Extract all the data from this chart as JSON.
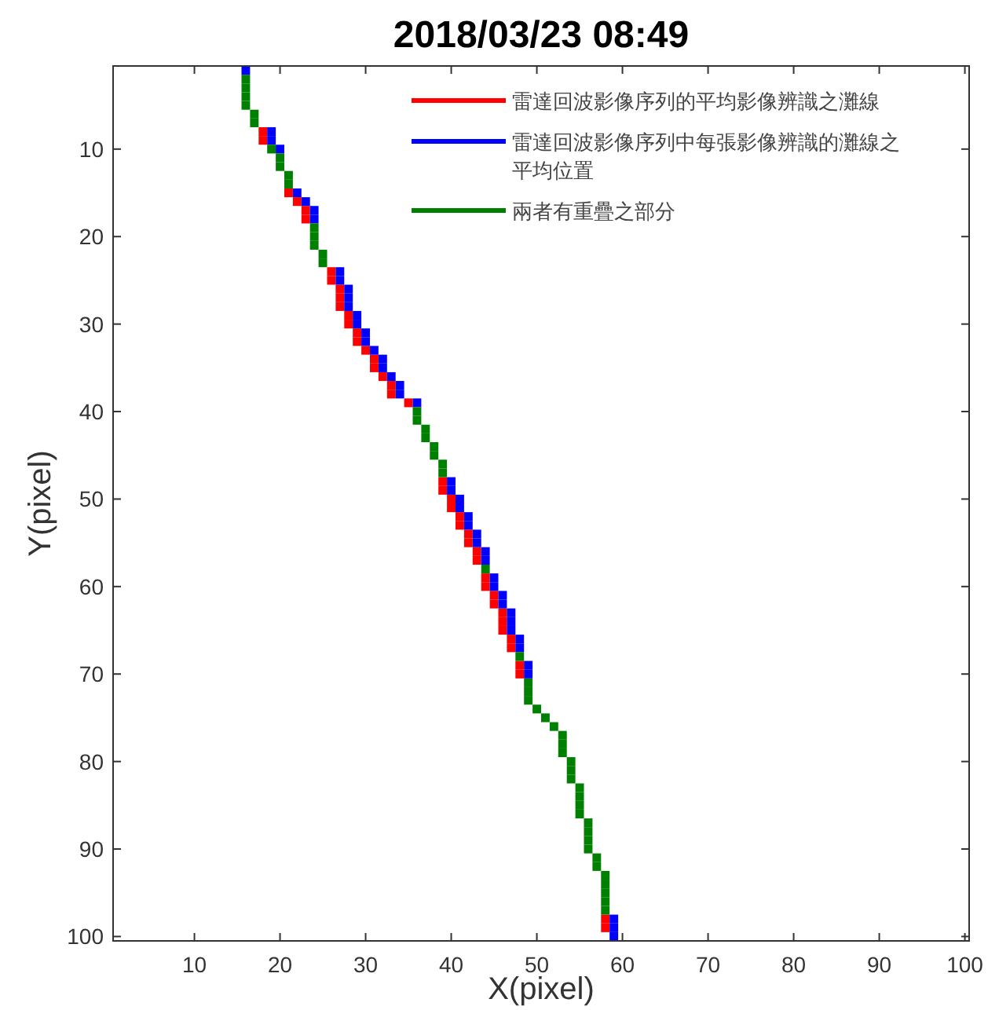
{
  "chart_data": {
    "type": "scatter",
    "title": "2018/03/23 08:49",
    "xlabel": "X(pixel)",
    "ylabel": "Y(pixel)",
    "marker": "square",
    "legend": "top right",
    "grid": false,
    "xlim": [
      0.5,
      100.5
    ],
    "ylim": [
      100.5,
      0.5
    ],
    "xticks": [
      10,
      20,
      30,
      40,
      50,
      60,
      70,
      80,
      90,
      100
    ],
    "yticks": [
      10,
      20,
      30,
      40,
      50,
      60,
      70,
      80,
      90,
      100
    ],
    "series": [
      {
        "name": "雷達回波影像序列的平均影像辨識之灘線",
        "color": "#ff0000",
        "x": [
          18,
          18,
          21,
          22,
          23,
          23,
          26,
          26,
          27,
          27,
          27,
          28,
          28,
          29,
          29,
          30,
          31,
          31,
          32,
          33,
          33,
          35,
          39,
          39,
          40,
          40,
          41,
          41,
          42,
          42,
          43,
          43,
          44,
          44,
          45,
          45,
          46,
          46,
          46,
          47,
          47,
          48,
          48,
          58,
          58
        ],
        "values": [
          8,
          9,
          15,
          16,
          17,
          18,
          24,
          25,
          26,
          27,
          28,
          29,
          30,
          31,
          32,
          33,
          34,
          35,
          36,
          37,
          38,
          39,
          48,
          49,
          50,
          51,
          52,
          53,
          54,
          55,
          56,
          57,
          59,
          60,
          61,
          62,
          63,
          64,
          65,
          66,
          67,
          69,
          70,
          98,
          99
        ]
      },
      {
        "name": "雷達回波影像序列中每張影像辨識的灘線之平均位置",
        "color": "#0000ff",
        "x": [
          16,
          19,
          19,
          20,
          22,
          23,
          24,
          24,
          27,
          27,
          28,
          28,
          28,
          29,
          29,
          30,
          30,
          31,
          32,
          32,
          33,
          34,
          34,
          36,
          40,
          40,
          41,
          41,
          42,
          42,
          43,
          43,
          44,
          44,
          45,
          45,
          46,
          46,
          47,
          47,
          47,
          48,
          48,
          49,
          49,
          59,
          59,
          59
        ],
        "values": [
          1,
          8,
          9,
          10,
          15,
          16,
          17,
          18,
          24,
          25,
          26,
          27,
          28,
          29,
          30,
          31,
          32,
          33,
          34,
          35,
          36,
          37,
          38,
          39,
          48,
          49,
          50,
          51,
          52,
          53,
          54,
          55,
          56,
          57,
          59,
          60,
          61,
          62,
          63,
          64,
          65,
          66,
          67,
          69,
          70,
          98,
          99,
          100
        ]
      },
      {
        "name": "兩者有重疊之部分",
        "color": "#008000",
        "x": [
          16,
          16,
          16,
          16,
          17,
          17,
          19,
          20,
          20,
          21,
          21,
          24,
          24,
          24,
          25,
          25,
          36,
          36,
          37,
          37,
          38,
          38,
          39,
          39,
          44,
          48,
          49,
          49,
          49,
          50,
          51,
          52,
          53,
          53,
          53,
          54,
          54,
          54,
          55,
          55,
          55,
          55,
          56,
          56,
          56,
          56,
          57,
          57,
          58,
          58,
          58,
          58,
          58
        ],
        "values": [
          2,
          3,
          4,
          5,
          6,
          7,
          10,
          11,
          12,
          13,
          14,
          19,
          20,
          21,
          22,
          23,
          40,
          41,
          42,
          43,
          44,
          45,
          46,
          47,
          58,
          68,
          71,
          72,
          73,
          74,
          75,
          76,
          77,
          78,
          79,
          80,
          81,
          82,
          83,
          84,
          85,
          86,
          87,
          88,
          89,
          90,
          91,
          92,
          93,
          94,
          95,
          96,
          97
        ]
      }
    ]
  }
}
